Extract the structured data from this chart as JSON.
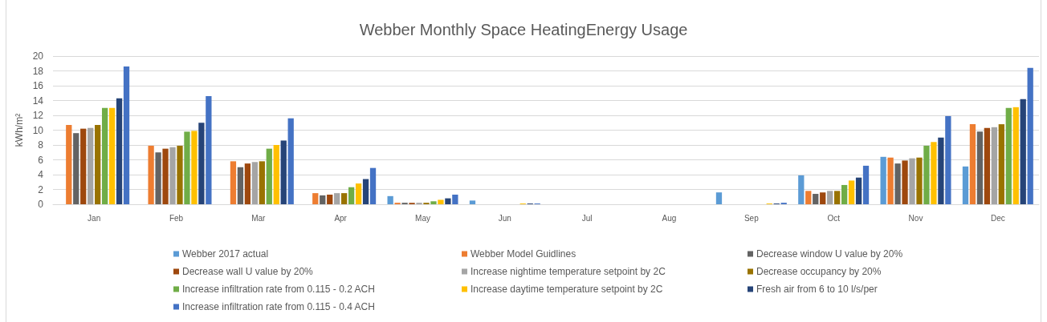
{
  "chart_data": {
    "type": "bar",
    "title": "Webber Monthly Space HeatingEnergy Usage",
    "ylabel": "kWh/m²",
    "categories": [
      "Jan",
      "Feb",
      "Mar",
      "Apr",
      "May",
      "Jun",
      "Jul",
      "Aug",
      "Sep",
      "Oct",
      "Nov",
      "Dec"
    ],
    "series": [
      {
        "name": "Webber 2017 actual",
        "color": "#5b9bd5",
        "values": [
          null,
          null,
          null,
          null,
          1.1,
          0.5,
          0,
          0,
          1.6,
          3.9,
          6.4,
          5.1
        ]
      },
      {
        "name": "Webber Model Guidlines",
        "color": "#ed7d31",
        "values": [
          10.7,
          7.9,
          5.8,
          1.5,
          0.2,
          0,
          0,
          0,
          0,
          1.8,
          6.3,
          10.8
        ]
      },
      {
        "name": "Decrease window U value by 20%",
        "color": "#636363",
        "values": [
          9.6,
          7.0,
          5.0,
          1.2,
          0.2,
          0,
          0,
          0,
          0,
          1.4,
          5.5,
          9.8
        ]
      },
      {
        "name": "Decrease wall U value by 20%",
        "color": "#9e480e",
        "values": [
          10.2,
          7.5,
          5.5,
          1.3,
          0.2,
          0,
          0,
          0,
          0,
          1.6,
          5.9,
          10.3
        ]
      },
      {
        "name": "Increase nightime temperature setpoint by 2C",
        "color": "#a5a5a5",
        "values": [
          10.3,
          7.7,
          5.7,
          1.5,
          0.2,
          0,
          0,
          0,
          0,
          1.8,
          6.2,
          10.4
        ]
      },
      {
        "name": "Decrease occupancy by 20%",
        "color": "#997300",
        "values": [
          10.7,
          7.9,
          5.8,
          1.5,
          0.2,
          0,
          0,
          0,
          0,
          1.8,
          6.3,
          10.8
        ]
      },
      {
        "name": "Increase infiltration rate from 0.115 - 0.2 ACH",
        "color": "#70ad47",
        "values": [
          13.0,
          9.8,
          7.5,
          2.3,
          0.4,
          0,
          0,
          0,
          0,
          2.6,
          7.9,
          13.0
        ]
      },
      {
        "name": "Increase daytime temperature setpoint by 2C",
        "color": "#ffc000",
        "values": [
          13.0,
          9.9,
          8.0,
          2.8,
          0.6,
          0.1,
          0,
          0,
          0.1,
          3.2,
          8.4,
          13.1
        ]
      },
      {
        "name": "Fresh air from 6 to 10 l/s/per",
        "color": "#264478",
        "values": [
          14.3,
          11.0,
          8.6,
          3.4,
          0.8,
          0.1,
          0,
          0,
          0.1,
          3.6,
          9.0,
          14.2
        ]
      },
      {
        "name": "Increase infiltration rate from 0.115 - 0.4 ACH",
        "color": "#4472c4",
        "values": [
          18.6,
          14.6,
          11.6,
          4.9,
          1.3,
          0.1,
          0,
          0,
          0.2,
          5.2,
          11.9,
          18.4
        ]
      }
    ],
    "ylim": [
      0,
      20
    ],
    "yticks": [
      0,
      2,
      4,
      6,
      8,
      10,
      12,
      14,
      16,
      18,
      20
    ],
    "grid": "y",
    "legend": "bottom"
  }
}
